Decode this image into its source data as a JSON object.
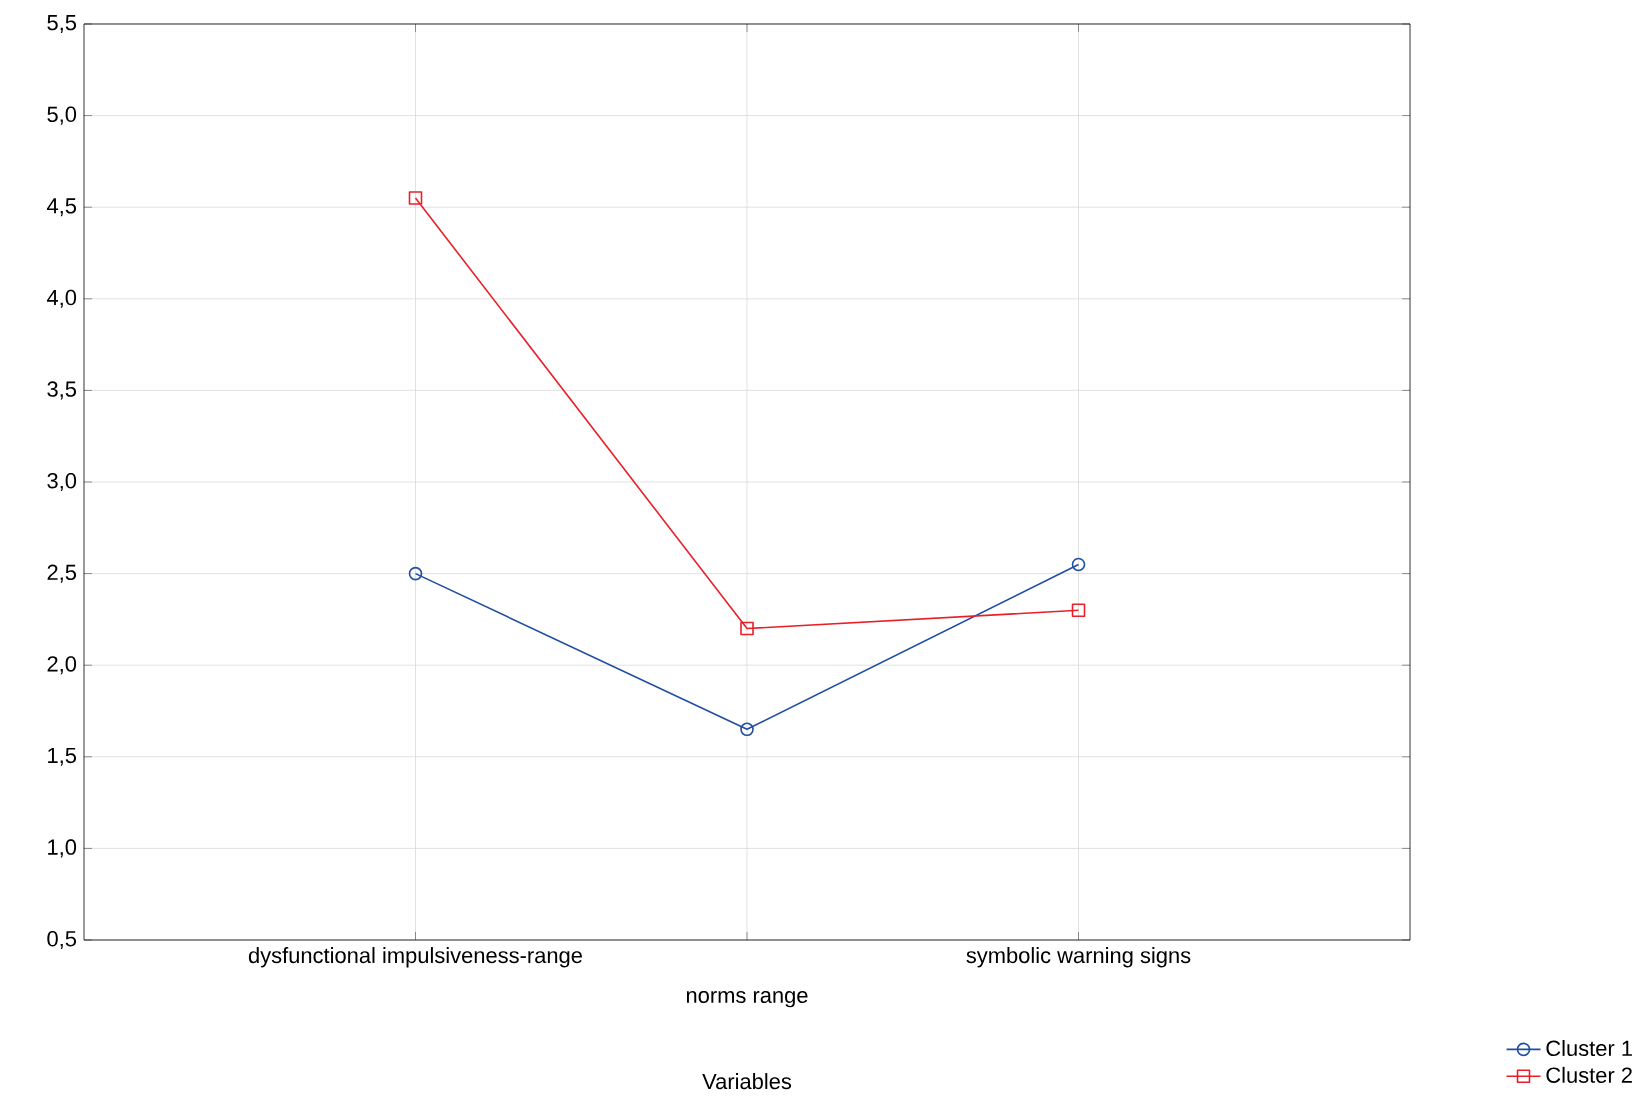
{
  "chart_data": {
    "type": "line",
    "xlabel": "Variables",
    "categories": [
      "dysfunctional impulsiveness-range",
      "norms range",
      "symbolic warning signs"
    ],
    "series": [
      {
        "name": "Cluster 1",
        "color": "#1f4ea3",
        "marker": "circle",
        "values": [
          2.5,
          1.65,
          2.55
        ]
      },
      {
        "name": "Cluster 2",
        "color": "#e8202a",
        "marker": "square",
        "values": [
          4.55,
          2.2,
          2.3
        ]
      }
    ],
    "ylim": [
      0.5,
      5.5
    ],
    "yticks": [
      {
        "value": 0.5,
        "label": "0,5"
      },
      {
        "value": 1.0,
        "label": "1,0"
      },
      {
        "value": 1.5,
        "label": "1,5"
      },
      {
        "value": 2.0,
        "label": "2,0"
      },
      {
        "value": 2.5,
        "label": "2,5"
      },
      {
        "value": 3.0,
        "label": "3,0"
      },
      {
        "value": 3.5,
        "label": "3,5"
      },
      {
        "value": 4.0,
        "label": "4,0"
      },
      {
        "value": 4.5,
        "label": "4,5"
      },
      {
        "value": 5.0,
        "label": "5,0"
      },
      {
        "value": 5.5,
        "label": "5,5"
      }
    ],
    "grid": true,
    "legend": "bottom right",
    "line_style": "solid"
  }
}
